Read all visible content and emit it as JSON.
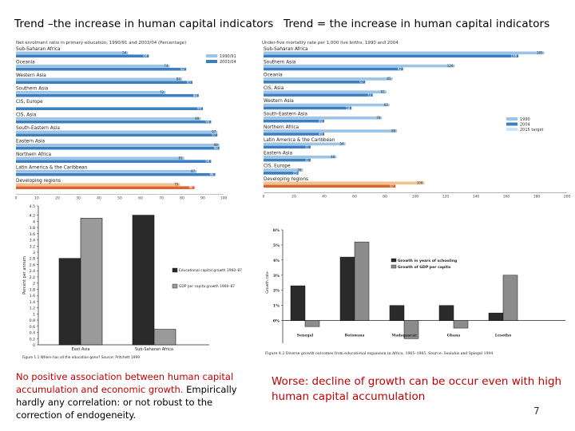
{
  "slide": {
    "title_left": "Trend –the increase in human capital indicators",
    "title_right": "Trend = the increase in human capital indicators",
    "caption_left_red": "No positive association between human capital accumulation and economic growth.",
    "caption_left_black": " Empirically hardly any correlation: or not robust to the correction of endogeneity.",
    "caption_right": "Worse: decline of growth can be occur even with high human capital accumulation",
    "page_number": "7"
  },
  "colors": {
    "accent_red": "#c00000",
    "bar_blue": "#3b7fc0",
    "bar_light_blue": "#9dc3e6",
    "bar_orange": "#e06030",
    "bar_tan": "#f2c28a"
  },
  "chart_data": [
    {
      "id": "enrolment",
      "type": "bar",
      "orientation": "horizontal",
      "title": "Net enrolment ratio in primary education, 1990/91 and 2003/04 (Percentage)",
      "categories": [
        "Sub-Saharan Africa",
        "Oceania",
        "Western Asia",
        "Southern Asia",
        "CIS, Europe",
        "CIS, Asia",
        "South-Eastern Asia",
        "Eastern Asia",
        "Northern Africa",
        "Latin America & the Caribbean",
        "Developing regions"
      ],
      "series": [
        {
          "name": "1990/91",
          "values": [
            54,
            74,
            80,
            72,
            null,
            89,
            97,
            98,
            81,
            87,
            79
          ]
        },
        {
          "name": "2003/04",
          "values": [
            64,
            82,
            85,
            88,
            90,
            94,
            97,
            98,
            94,
            96,
            86
          ]
        }
      ],
      "value_labels_1990": [
        "54",
        "74",
        "80",
        "72",
        "",
        "89",
        "97",
        "98",
        "81",
        "87",
        "79"
      ],
      "value_labels_2003": [
        "64",
        "82",
        "85",
        "88",
        "90",
        "94",
        "97",
        "98",
        "94",
        "96",
        "86"
      ],
      "xlim": [
        0,
        100
      ],
      "xticks": [
        "0",
        "10",
        "20",
        "30",
        "40",
        "50",
        "60",
        "70",
        "80",
        "90",
        "100"
      ]
    },
    {
      "id": "mortality",
      "type": "bar",
      "orientation": "horizontal",
      "title": "Under-five mortality rate per 1,000 live births, 1990 and 2004",
      "categories": [
        "Sub-Saharan Africa",
        "Southern Asia",
        "Oceania",
        "CIS, Asia",
        "Western Asia",
        "South-Eastern Asia",
        "Northern Africa",
        "Latin America & the Caribbean",
        "Eastern Asia",
        "CIS, Europe",
        "Developing regions"
      ],
      "series": [
        {
          "name": "1990",
          "values": [
            185,
            126,
            85,
            81,
            83,
            78,
            88,
            54,
            48,
            26,
            106
          ]
        },
        {
          "name": "2004",
          "values": [
            168,
            92,
            67,
            72,
            58,
            40,
            40,
            31,
            31,
            23,
            87
          ]
        }
      ],
      "value_labels_1990": [
        "185",
        "126",
        "85",
        "81",
        "83",
        "78",
        "88",
        "54",
        "48",
        "26",
        "106"
      ],
      "value_labels_2004": [
        "168",
        "92",
        "67",
        "72",
        "58",
        "40",
        "40",
        "31",
        "31",
        "23",
        "87"
      ],
      "legend": [
        "1990",
        "2004",
        "2015 target"
      ],
      "xlim": [
        0,
        200
      ],
      "xticks": [
        "0",
        "20",
        "40",
        "60",
        "80",
        "100",
        "120",
        "140",
        "160",
        "180",
        "200"
      ]
    },
    {
      "id": "educ-vs-gdp",
      "type": "bar",
      "categories": [
        "East Asia",
        "Sub-Saharan Africa"
      ],
      "series": [
        {
          "name": "Educational capital growth 1960–87",
          "values": [
            2.8,
            4.2
          ]
        },
        {
          "name": "GDP per capita growth 1960–87",
          "values": [
            4.1,
            0.5
          ]
        }
      ],
      "ylabel": "Percent per annum",
      "ylim": [
        0,
        4.5
      ],
      "yticks": [
        "0",
        "0.2",
        "0.4",
        "0.6",
        "0.8",
        "1",
        "1.2",
        "1.4",
        "1.6",
        "1.8",
        "2",
        "2.2",
        "2.4",
        "2.6",
        "2.8",
        "3",
        "3.2",
        "3.4",
        "3.6",
        "3.8",
        "4",
        "4.2",
        "4.5"
      ],
      "figure_caption": "Figure 1.1 Where has all the education gone? Source: Pritchett 1999"
    },
    {
      "id": "africa-countries",
      "type": "bar",
      "categories": [
        "Senegal",
        "Botswana",
        "Madagascar",
        "Ghana",
        "Lesotho"
      ],
      "series": [
        {
          "name": "Growth in years of schooling",
          "values": [
            2.3,
            4.2,
            1.0,
            1.0,
            0.5
          ]
        },
        {
          "name": "Growth of GDP per capita",
          "values": [
            -0.4,
            5.2,
            -1.2,
            -0.5,
            3.0
          ]
        }
      ],
      "ylabel": "Growth rate",
      "ylim": [
        -1.5,
        6
      ],
      "yticks": [
        "0%",
        "1%",
        "2%",
        "3%",
        "4%",
        "5%",
        "6%"
      ],
      "figure_caption": "Figure 4.2 Diverse growth outcomes from educational expansion in Africa, 1965–1985. Source: Sealahis and Spiegel 1994"
    }
  ]
}
